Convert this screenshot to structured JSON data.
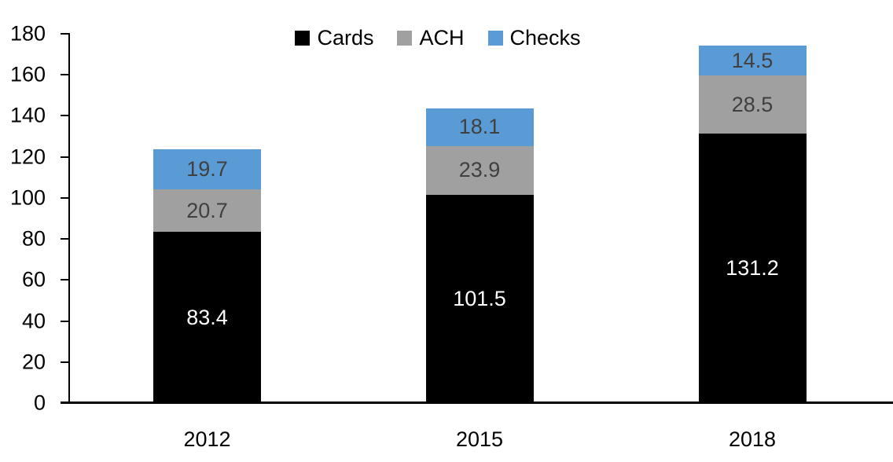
{
  "chart_data": {
    "type": "bar",
    "stacked": true,
    "title": "",
    "xlabel": "",
    "ylabel": "",
    "categories": [
      "2012",
      "2015",
      "2018"
    ],
    "series": [
      {
        "name": "Cards",
        "values": [
          83.4,
          101.5,
          131.2
        ],
        "color": "#000000",
        "label_color": "#ffffff"
      },
      {
        "name": "ACH",
        "values": [
          20.7,
          23.9,
          28.5
        ],
        "color": "#a0a0a0",
        "label_color": "#404040"
      },
      {
        "name": "Checks",
        "values": [
          19.7,
          18.1,
          14.5
        ],
        "color": "#5b9bd5",
        "label_color": "#404040"
      }
    ],
    "totals": [
      123.8,
      143.5,
      174.2
    ],
    "ylim": [
      0,
      180
    ],
    "ytick_step": 20,
    "yticks": [
      0,
      20,
      40,
      60,
      80,
      100,
      120,
      140,
      160,
      180
    ],
    "legend_position": "top-center",
    "legend_entries": [
      "Cards",
      "ACH",
      "Checks"
    ],
    "grid": false,
    "axis_color": "#000000",
    "background_color": "#ffffff"
  }
}
